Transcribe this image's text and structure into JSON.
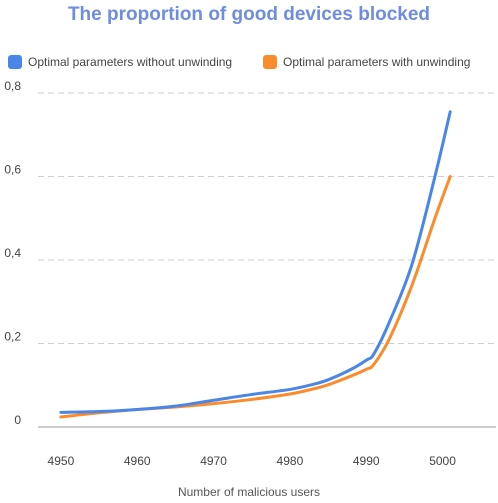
{
  "chart_data": {
    "type": "line",
    "title": "The proportion of good devices blocked",
    "xlabel": "Number of malicious users",
    "ylabel": "",
    "xlim": [
      4947,
      5007
    ],
    "ylim": [
      0,
      0.8
    ],
    "x_ticks": [
      4950,
      4960,
      4970,
      4980,
      4990,
      5000
    ],
    "x_tick_labels": [
      "4950",
      "4960",
      "4970",
      "4980",
      "4990",
      "5000"
    ],
    "y_ticks": [
      0,
      0.2,
      0.4,
      0.6,
      0.8
    ],
    "y_tick_labels": [
      "0",
      "0,2",
      "0,4",
      "0,6",
      "0,8"
    ],
    "grid": "horizontal-dashed",
    "legend_position": "top",
    "series": [
      {
        "name": "Optimal parameters without unwinding",
        "color": "#4a86e8",
        "x": [
          4950,
          4955,
          4960,
          4965,
          4970,
          4975,
          4980,
          4983,
          4985,
          4988,
          4990,
          4991,
          4993,
          4996,
          4999,
          5001
        ],
        "y": [
          0.035,
          0.037,
          0.042,
          0.05,
          0.064,
          0.078,
          0.09,
          0.102,
          0.113,
          0.138,
          0.16,
          0.175,
          0.25,
          0.39,
          0.6,
          0.755
        ]
      },
      {
        "name": "Optimal parameters with unwinding",
        "color": "#fb8c2c",
        "x": [
          4950,
          4955,
          4960,
          4965,
          4970,
          4975,
          4980,
          4983,
          4985,
          4988,
          4990,
          4991,
          4993,
          4996,
          4999,
          5001
        ],
        "y": [
          0.024,
          0.034,
          0.042,
          0.048,
          0.056,
          0.066,
          0.079,
          0.091,
          0.101,
          0.122,
          0.138,
          0.15,
          0.21,
          0.34,
          0.5,
          0.6
        ]
      }
    ]
  }
}
